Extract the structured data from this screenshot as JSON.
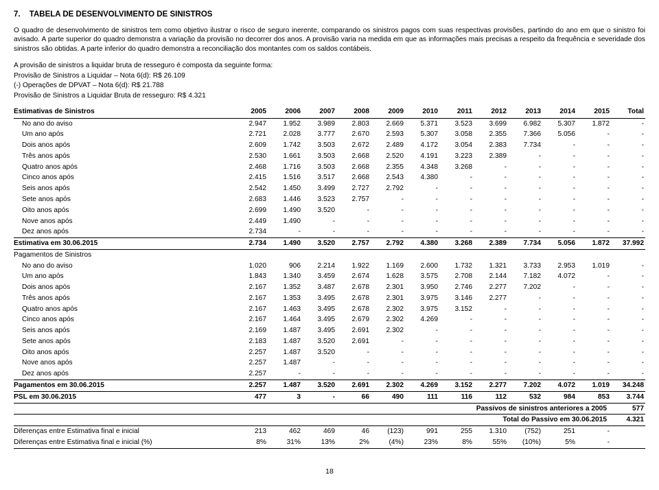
{
  "section": {
    "number": "7.",
    "title": "TABELA DE DESENVOLVIMENTO DE SINISTROS"
  },
  "intro": "O quadro de desenvolvimento de sinistros tem como objetivo ilustrar o risco de seguro inerente, comparando os sinistros pagos com suas respectivas provisões, partindo do ano em que o sinistro foi avisado. A parte superior do quadro demonstra a variação da provisão no decorrer dos anos. A provisão varia na medida em que as informações mais precisas a respeito da frequência e severidade dos sinistros são obtidas. A parte inferior do quadro demonstra a reconciliação dos montantes com os saldos contábeis.",
  "comp_intro": "A provisão de sinistros a liquidar bruta de resseguro é composta da seguinte forma:",
  "comp_lines": [
    "Provisão de Sinistros a Liquidar – Nota 6(d): R$ 26.109",
    "(-) Operações de DPVAT – Nota 6(d): R$ 21.788",
    "Provisão de Sinistros a Liquidar Bruta de resseguro: R$ 4.321"
  ],
  "headers_label": "Estimativas de Sinistros",
  "years": [
    "2005",
    "2006",
    "2007",
    "2008",
    "2009",
    "2010",
    "2011",
    "2012",
    "2013",
    "2014",
    "2015",
    "Total"
  ],
  "est_rows": [
    {
      "l": "No ano do aviso",
      "v": [
        "2.947",
        "1.952",
        "3.989",
        "2.803",
        "2.669",
        "5.371",
        "3.523",
        "3.699",
        "6.982",
        "5.307",
        "1.872",
        "-"
      ]
    },
    {
      "l": "Um ano após",
      "v": [
        "2.721",
        "2.028",
        "3.777",
        "2.670",
        "2.593",
        "5.307",
        "3.058",
        "2.355",
        "7.366",
        "5.056",
        "-",
        "-"
      ]
    },
    {
      "l": "Dois anos após",
      "v": [
        "2.609",
        "1.742",
        "3.503",
        "2.672",
        "2.489",
        "4.172",
        "3.054",
        "2.383",
        "7.734",
        "-",
        "-",
        "-"
      ]
    },
    {
      "l": "Três anos após",
      "v": [
        "2.530",
        "1.661",
        "3.503",
        "2.668",
        "2.520",
        "4.191",
        "3.223",
        "2.389",
        "-",
        "-",
        "-",
        "-"
      ]
    },
    {
      "l": "Quatro anos após",
      "v": [
        "2.468",
        "1.716",
        "3.503",
        "2.668",
        "2.355",
        "4.348",
        "3.268",
        "-",
        "-",
        "-",
        "-",
        "-"
      ]
    },
    {
      "l": "Cinco anos após",
      "v": [
        "2.415",
        "1.516",
        "3.517",
        "2.668",
        "2.543",
        "4.380",
        "-",
        "-",
        "-",
        "-",
        "-",
        "-"
      ]
    },
    {
      "l": "Seis anos após",
      "v": [
        "2.542",
        "1.450",
        "3.499",
        "2.727",
        "2.792",
        "-",
        "-",
        "-",
        "-",
        "-",
        "-",
        "-"
      ]
    },
    {
      "l": "Sete anos após",
      "v": [
        "2.683",
        "1.446",
        "3.523",
        "2.757",
        "-",
        "-",
        "-",
        "-",
        "-",
        "-",
        "-",
        "-"
      ]
    },
    {
      "l": "Oito anos após",
      "v": [
        "2.699",
        "1.490",
        "3.520",
        "-",
        "-",
        "-",
        "-",
        "-",
        "-",
        "-",
        "-",
        "-"
      ]
    },
    {
      "l": "Nove anos após",
      "v": [
        "2.449",
        "1.490",
        "-",
        "-",
        "-",
        "-",
        "-",
        "-",
        "-",
        "-",
        "-",
        "-"
      ]
    },
    {
      "l": "Dez anos após",
      "v": [
        "2.734",
        "-",
        "-",
        "-",
        "-",
        "-",
        "-",
        "-",
        "-",
        "-",
        "-",
        "-"
      ]
    }
  ],
  "est_total": {
    "l": "Estimativa em 30.06.2015",
    "v": [
      "2.734",
      "1.490",
      "3.520",
      "2.757",
      "2.792",
      "4.380",
      "3.268",
      "2.389",
      "7.734",
      "5.056",
      "1.872",
      "37.992"
    ]
  },
  "pag_header": "Pagamentos de Sinistros",
  "pag_rows": [
    {
      "l": "No ano do aviso",
      "v": [
        "1.020",
        "906",
        "2.214",
        "1.922",
        "1.169",
        "2.600",
        "1.732",
        "1.321",
        "3.733",
        "2.953",
        "1.019",
        "-"
      ]
    },
    {
      "l": "Um ano após",
      "v": [
        "1.843",
        "1.340",
        "3.459",
        "2.674",
        "1.628",
        "3.575",
        "2.708",
        "2.144",
        "7.182",
        "4.072",
        "-",
        "-"
      ]
    },
    {
      "l": "Dois anos após",
      "v": [
        "2.167",
        "1.352",
        "3.487",
        "2.678",
        "2.301",
        "3.950",
        "2.746",
        "2.277",
        "7.202",
        "-",
        "-",
        "-"
      ]
    },
    {
      "l": "Três anos após",
      "v": [
        "2.167",
        "1.353",
        "3.495",
        "2.678",
        "2.301",
        "3.975",
        "3.146",
        "2.277",
        "-",
        "-",
        "-",
        "-"
      ]
    },
    {
      "l": "Quatro anos após",
      "v": [
        "2.167",
        "1.463",
        "3.495",
        "2.678",
        "2.302",
        "3.975",
        "3.152",
        "-",
        "-",
        "-",
        "-",
        "-"
      ]
    },
    {
      "l": "Cinco anos após",
      "v": [
        "2.167",
        "1.464",
        "3.495",
        "2.679",
        "2.302",
        "4.269",
        "-",
        "-",
        "-",
        "-",
        "-",
        "-"
      ]
    },
    {
      "l": "Seis anos após",
      "v": [
        "2.169",
        "1.487",
        "3.495",
        "2.691",
        "2.302",
        "-",
        "-",
        "-",
        "-",
        "-",
        "-",
        "-"
      ]
    },
    {
      "l": "Sete anos após",
      "v": [
        "2.183",
        "1.487",
        "3.520",
        "2.691",
        "-",
        "-",
        "-",
        "-",
        "-",
        "-",
        "-",
        "-"
      ]
    },
    {
      "l": "Oito anos após",
      "v": [
        "2.257",
        "1.487",
        "3.520",
        "-",
        "-",
        "-",
        "-",
        "-",
        "-",
        "-",
        "-",
        "-"
      ]
    },
    {
      "l": "Nove anos após",
      "v": [
        "2.257",
        "1.487",
        "-",
        "-",
        "-",
        "-",
        "-",
        "-",
        "-",
        "-",
        "-",
        "-"
      ]
    },
    {
      "l": "Dez anos após",
      "v": [
        "2.257",
        "-",
        "-",
        "-",
        "-",
        "-",
        "-",
        "-",
        "-",
        "-",
        "-",
        "-"
      ]
    }
  ],
  "pag_total": {
    "l": "Pagamentos em 30.06.2015",
    "v": [
      "2.257",
      "1.487",
      "3.520",
      "2.691",
      "2.302",
      "4.269",
      "3.152",
      "2.277",
      "7.202",
      "4.072",
      "1.019",
      "34.248"
    ]
  },
  "psl": {
    "l": "PSL em 30.06.2015",
    "v": [
      "477",
      "3",
      "-",
      "66",
      "490",
      "111",
      "116",
      "112",
      "532",
      "984",
      "853",
      "3.744"
    ]
  },
  "passivos": {
    "label": "Passivos de sinistros anteriores a 2005",
    "value": "577"
  },
  "total_passivo": {
    "label": "Total do Passivo em 30.06.2015",
    "value": "4.321"
  },
  "diff_rows": [
    {
      "l": "Diferenças entre Estimativa final e inicial",
      "v": [
        "213",
        "462",
        "469",
        "46",
        "(123)",
        "991",
        "255",
        "1.310",
        "(752)",
        "251",
        "-",
        ""
      ]
    },
    {
      "l": "Diferenças entre Estimativa final e inicial (%)",
      "v": [
        "8%",
        "31%",
        "13%",
        "2%",
        "(4%)",
        "23%",
        "8%",
        "55%",
        "(10%)",
        "5%",
        "-",
        ""
      ]
    }
  ],
  "page_number": "18"
}
